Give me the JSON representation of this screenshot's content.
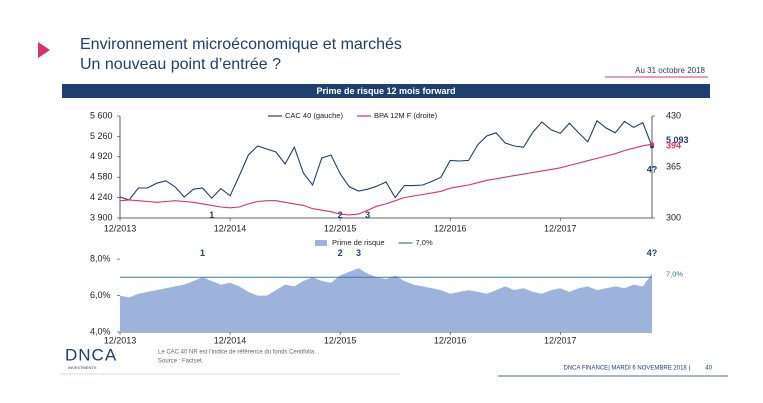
{
  "header": {
    "title_line1": "Environnement microéconomique et marchés",
    "title_line2": "Un nouveau point d’entrée ?",
    "date": "Au 31 octobre 2018"
  },
  "banner": "Prime de risque 12 mois forward",
  "chart_data": [
    {
      "type": "line",
      "x": [
        "12/2013",
        "01/2014",
        "02/2014",
        "03/2014",
        "04/2014",
        "05/2014",
        "06/2014",
        "07/2014",
        "08/2014",
        "09/2014",
        "10/2014",
        "11/2014",
        "12/2014",
        "01/2015",
        "02/2015",
        "03/2015",
        "04/2015",
        "05/2015",
        "06/2015",
        "07/2015",
        "08/2015",
        "09/2015",
        "10/2015",
        "11/2015",
        "12/2015",
        "01/2016",
        "02/2016",
        "03/2016",
        "04/2016",
        "05/2016",
        "06/2016",
        "07/2016",
        "08/2016",
        "09/2016",
        "10/2016",
        "11/2016",
        "12/2016",
        "01/2017",
        "02/2017",
        "03/2017",
        "04/2017",
        "05/2017",
        "06/2017",
        "07/2017",
        "08/2017",
        "09/2017",
        "10/2017",
        "11/2017",
        "12/2017",
        "01/2018",
        "02/2018",
        "03/2018",
        "04/2018",
        "05/2018",
        "06/2018",
        "07/2018",
        "08/2018",
        "09/2018",
        "10/2018"
      ],
      "xticks": [
        "12/2013",
        "12/2014",
        "12/2015",
        "12/2016",
        "12/2017"
      ],
      "series": [
        {
          "name": "CAC 40 (gauche)",
          "color": "#1f3f6e",
          "last_label": "5 093",
          "values": [
            4250,
            4200,
            4400,
            4400,
            4480,
            4520,
            4420,
            4250,
            4380,
            4400,
            4230,
            4390,
            4270,
            4600,
            4950,
            5100,
            5050,
            5000,
            4800,
            5080,
            4650,
            4450,
            4900,
            4950,
            4640,
            4420,
            4350,
            4380,
            4430,
            4500,
            4240,
            4440,
            4440,
            4450,
            4510,
            4580,
            4860,
            4850,
            4860,
            5120,
            5270,
            5320,
            5150,
            5100,
            5080,
            5330,
            5500,
            5370,
            5310,
            5480,
            5320,
            5170,
            5520,
            5400,
            5320,
            5510,
            5410,
            5490,
            5093
          ]
        },
        {
          "name": "BPA 12M F (droite)",
          "color": "#d6336c",
          "axis": "y2",
          "last_label": "394",
          "values": [
            322,
            323,
            322,
            321,
            320,
            321,
            322,
            321,
            320,
            318,
            316,
            314,
            313,
            314,
            318,
            321,
            322,
            322,
            320,
            318,
            316,
            312,
            310,
            308,
            305,
            304,
            305,
            310,
            315,
            318,
            322,
            326,
            328,
            330,
            332,
            334,
            338,
            340,
            342,
            345,
            348,
            350,
            352,
            354,
            356,
            358,
            360,
            362,
            364,
            367,
            370,
            373,
            376,
            379,
            382,
            386,
            389,
            392,
            394
          ]
        }
      ],
      "ylim": [
        3900,
        5600
      ],
      "yticks": [
        {
          "value": 3900,
          "label": "3 900"
        },
        {
          "value": 4240,
          "label": "4 240"
        },
        {
          "value": 4580,
          "label": "4 580"
        },
        {
          "value": 4920,
          "label": "4 920"
        },
        {
          "value": 5260,
          "label": "5 260"
        },
        {
          "value": 5600,
          "label": "5 600"
        }
      ],
      "y2lim": [
        300,
        430
      ],
      "y2ticks": [
        300,
        365,
        430
      ],
      "annotations": [
        {
          "label": "1",
          "x": "10/2014",
          "y": 3940
        },
        {
          "label": "2",
          "x": "12/2015",
          "y": 3940
        },
        {
          "label": "3",
          "x": "03/2016",
          "y": 3940
        },
        {
          "label": "4?",
          "x": "10/2018",
          "y": 4700
        }
      ]
    },
    {
      "type": "area",
      "x": [
        "12/2013",
        "01/2014",
        "02/2014",
        "03/2014",
        "04/2014",
        "05/2014",
        "06/2014",
        "07/2014",
        "08/2014",
        "09/2014",
        "10/2014",
        "11/2014",
        "12/2014",
        "01/2015",
        "02/2015",
        "03/2015",
        "04/2015",
        "05/2015",
        "06/2015",
        "07/2015",
        "08/2015",
        "09/2015",
        "10/2015",
        "11/2015",
        "12/2015",
        "01/2016",
        "02/2016",
        "03/2016",
        "04/2016",
        "05/2016",
        "06/2016",
        "07/2016",
        "08/2016",
        "09/2016",
        "10/2016",
        "11/2016",
        "12/2016",
        "01/2017",
        "02/2017",
        "03/2017",
        "04/2017",
        "05/2017",
        "06/2017",
        "07/2017",
        "08/2017",
        "09/2017",
        "10/2017",
        "11/2017",
        "12/2017",
        "01/2018",
        "02/2018",
        "03/2018",
        "04/2018",
        "05/2018",
        "06/2018",
        "07/2018",
        "08/2018",
        "09/2018",
        "10/2018"
      ],
      "xticks": [
        "12/2013",
        "12/2014",
        "12/2015",
        "12/2016",
        "12/2017"
      ],
      "series": [
        {
          "name": "Prime de risque",
          "color": "#9db3dc",
          "kind": "area",
          "values": [
            6.0,
            5.9,
            6.1,
            6.2,
            6.3,
            6.4,
            6.5,
            6.6,
            6.8,
            7.0,
            6.8,
            6.6,
            6.7,
            6.5,
            6.2,
            6.0,
            6.0,
            6.3,
            6.6,
            6.5,
            6.8,
            7.0,
            6.8,
            6.7,
            7.1,
            7.3,
            7.5,
            7.2,
            7.0,
            6.9,
            7.1,
            6.8,
            6.6,
            6.5,
            6.4,
            6.3,
            6.1,
            6.2,
            6.3,
            6.2,
            6.1,
            6.3,
            6.5,
            6.3,
            6.4,
            6.2,
            6.1,
            6.3,
            6.4,
            6.2,
            6.4,
            6.5,
            6.3,
            6.4,
            6.5,
            6.4,
            6.6,
            6.5,
            7.2
          ]
        },
        {
          "name": "7,0%",
          "color": "#3a7a96",
          "kind": "line",
          "values": [
            7,
            7,
            7,
            7,
            7,
            7,
            7,
            7,
            7,
            7,
            7,
            7,
            7,
            7,
            7,
            7,
            7,
            7,
            7,
            7,
            7,
            7,
            7,
            7,
            7,
            7,
            7,
            7,
            7,
            7,
            7,
            7,
            7,
            7,
            7,
            7,
            7,
            7,
            7,
            7,
            7,
            7,
            7,
            7,
            7,
            7,
            7,
            7,
            7,
            7,
            7,
            7,
            7,
            7,
            7,
            7,
            7,
            7,
            7
          ]
        }
      ],
      "ylim": [
        4,
        8.5
      ],
      "yticks": [
        {
          "value": 4,
          "label": "4,0%"
        },
        {
          "value": 6,
          "label": "6,0%"
        },
        {
          "value": 8,
          "label": "8,0%"
        }
      ],
      "annotations": [
        {
          "label": "1",
          "x": "09/2014",
          "y": 8.3
        },
        {
          "label": "2",
          "x": "12/2015",
          "y": 8.3
        },
        {
          "label": "3",
          "x": "02/2016",
          "y": 8.3
        },
        {
          "label": "4?",
          "x": "10/2018",
          "y": 8.3
        }
      ]
    }
  ],
  "footer": {
    "logo": "DNCA",
    "logo_sub": "INVESTMENTS",
    "note": "Le CAC 40 NR est l’indice de référence du fonds Centifolia.",
    "source": "Source : Factset.",
    "right": "DNCA FINANCE| MARDI 6 NOVEMBRE 2018 |",
    "page": "40"
  }
}
